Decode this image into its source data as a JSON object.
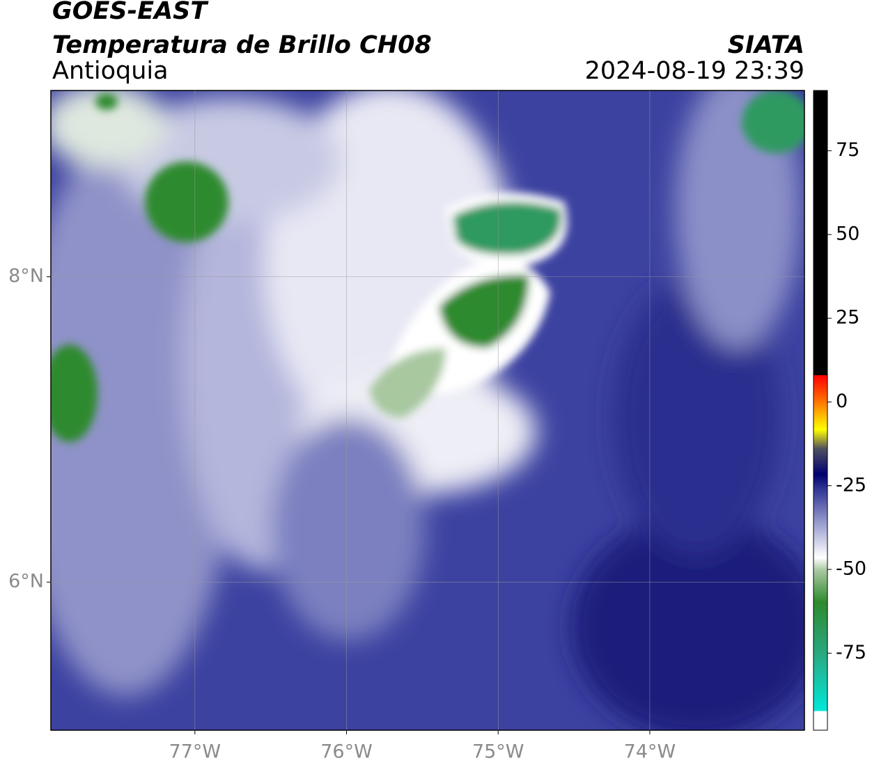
{
  "header": {
    "title": "GOES-EAST",
    "subtitle": "Temperatura de Brillo CH08",
    "region": "Antioquia",
    "source": "SIATA",
    "datetime": "2024-08-19 23:39"
  },
  "map": {
    "xlim": [
      -77.95,
      -72.98
    ],
    "ylim": [
      5.03,
      9.22
    ],
    "grid": true,
    "xticks": [
      {
        "value": -77,
        "label": "77°W"
      },
      {
        "value": -76,
        "label": "76°W"
      },
      {
        "value": -75,
        "label": "75°W"
      },
      {
        "value": -74,
        "label": "74°W"
      }
    ],
    "yticks": [
      {
        "value": 6,
        "label": "6°N"
      },
      {
        "value": 8,
        "label": "8°N"
      }
    ]
  },
  "colorbar": {
    "lim": [
      -98,
      93
    ],
    "ticks": [
      75,
      50,
      25,
      0,
      -25,
      -50,
      -75
    ]
  }
}
